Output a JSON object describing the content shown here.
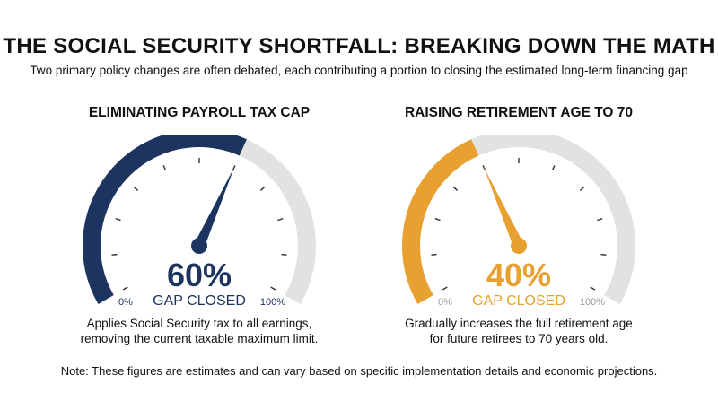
{
  "title": "THE SOCIAL SECURITY SHORTFALL: BREAKING DOWN THE MATH",
  "subtitle": "Two primary policy changes are often debated, each contributing a portion to closing the estimated long-term financing gap",
  "note": "Note: These figures are estimates and can vary based on specific implementation details and economic projections.",
  "colors": {
    "navy": "#1d3461",
    "orange": "#e8a030",
    "track": "#e2e2e2",
    "tick": "#333333",
    "scale_label": "#999999"
  },
  "chart_data": [
    {
      "type": "gauge",
      "title": "ELIMINATING PAYROLL TAX CAP",
      "value": 60,
      "value_label": "60%",
      "status_label": "GAP CLOSED",
      "range": [
        0,
        100
      ],
      "min_label": "0%",
      "max_label": "100%",
      "color": "#1d3461",
      "description": [
        "Applies Social Security tax to all earnings,",
        "removing the current taxable maximum limit."
      ]
    },
    {
      "type": "gauge",
      "title": "RAISING RETIREMENT AGE TO 70",
      "value": 40,
      "value_label": "40%",
      "status_label": "GAP CLOSED",
      "range": [
        0,
        100
      ],
      "min_label": "0%",
      "max_label": "100%",
      "color": "#e8a030",
      "description": [
        "Gradually increases the full retirement age",
        "for future retirees to 70 years old."
      ]
    }
  ]
}
